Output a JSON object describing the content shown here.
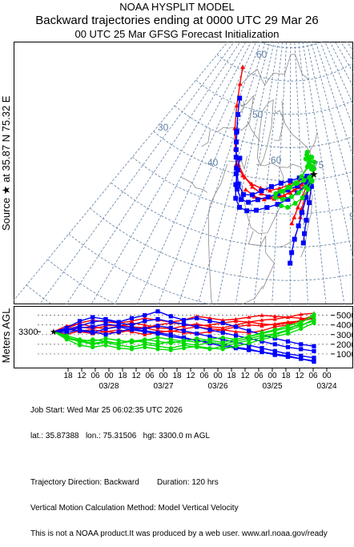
{
  "header": {
    "model": "NOAA HYSPLIT MODEL",
    "title": "Backward trajectories ending at 0000 UTC 29 Mar 26",
    "subtitle": "00 UTC 25 Mar    GFSG  Forecast Initialization"
  },
  "source_label": "Source ★ at   35.87 N   75.32 E",
  "profile_label": "Meters AGL",
  "map": {
    "lat_labels": [
      "60",
      "50",
      "40",
      "30"
    ],
    "lon_labels": [
      "60",
      "75",
      "90"
    ]
  },
  "chart_data": {
    "type": "line",
    "title": "Backward trajectories ending at 0000 UTC 29 Mar 26",
    "source_height_label": "3300",
    "y_axis": {
      "label": "Meters AGL",
      "ticks": [
        1000,
        2000,
        3000,
        4000,
        5000
      ],
      "ylim": [
        0,
        5800
      ]
    },
    "x_axis": {
      "hour_ticks": [
        "18",
        "12",
        "06",
        "00",
        "18",
        "12",
        "06",
        "00",
        "18",
        "12",
        "06",
        "00",
        "18",
        "12",
        "06",
        "00",
        "18",
        "12",
        "06",
        "00"
      ],
      "date_ticks": [
        "03/28",
        "03/27",
        "03/26",
        "03/25",
        "03/24"
      ]
    },
    "series": [
      {
        "color": "#ff0000",
        "marker": "triangle",
        "heights": [
          3300,
          3600,
          4200,
          4500,
          4300,
          4200,
          4400,
          4700,
          4500,
          4300,
          4500,
          4900,
          4700,
          4500,
          4600,
          4800,
          5000,
          4900,
          4800,
          5100,
          5200
        ]
      },
      {
        "color": "#ff0000",
        "marker": "triangle",
        "heights": [
          3300,
          3400,
          3800,
          3600,
          3900,
          4000,
          3800,
          3700,
          4000,
          4200,
          4100,
          3900,
          4000,
          4200,
          4400,
          4300,
          4500,
          4600,
          4800,
          4700,
          4600
        ]
      },
      {
        "color": "#ff0000",
        "marker": "triangle",
        "heights": [
          3300,
          3000,
          3400,
          3500,
          3300,
          3200,
          3500,
          3700,
          3400,
          3300,
          3600,
          3800,
          3600,
          3500,
          3800,
          4000,
          3900,
          4100,
          4300,
          4400,
          4800
        ]
      },
      {
        "color": "#ff0000",
        "marker": "triangle",
        "heights": [
          3300,
          3600,
          3300,
          3100,
          3300,
          3500,
          3300,
          3000,
          3200,
          3400,
          3200,
          3100,
          3300,
          3500,
          3300,
          3200,
          3400,
          3800,
          4000,
          4500,
          5000
        ]
      },
      {
        "color": "#ff0000",
        "marker": "triangle",
        "heights": [
          3300,
          3900,
          4100,
          3800,
          3600,
          3900,
          4200,
          4000,
          3700,
          3600,
          3900,
          4100,
          3800,
          3700,
          4000,
          4300,
          4100,
          4000,
          4200,
          4400,
          4700
        ]
      },
      {
        "color": "#0000ff",
        "marker": "square",
        "heights": [
          3300,
          3700,
          4400,
          4800,
          4600,
          4300,
          4700,
          5000,
          5400,
          4900,
          4500,
          4700,
          4400,
          4200,
          3800,
          3400,
          3000,
          2600,
          2300,
          2000,
          1800
        ]
      },
      {
        "color": "#0000ff",
        "marker": "square",
        "heights": [
          3300,
          3500,
          3900,
          4300,
          4500,
          4200,
          4000,
          4400,
          4600,
          4300,
          4100,
          3800,
          3500,
          3200,
          2900,
          2600,
          2300,
          2000,
          1700,
          1500,
          1300
        ]
      },
      {
        "color": "#0000ff",
        "marker": "square",
        "heights": [
          3300,
          3400,
          3700,
          3800,
          4100,
          3900,
          3700,
          3600,
          3900,
          3700,
          3400,
          3100,
          2800,
          2500,
          2200,
          1900,
          1600,
          1300,
          1000,
          800,
          600
        ]
      },
      {
        "color": "#0000ff",
        "marker": "square",
        "heights": [
          3300,
          3600,
          3400,
          3200,
          3600,
          3800,
          3500,
          3300,
          3100,
          2800,
          2600,
          2400,
          2100,
          1800,
          1600,
          1400,
          1200,
          900,
          700,
          500,
          300
        ]
      },
      {
        "color": "#0000ff",
        "marker": "square",
        "heights": [
          3300,
          3200,
          3500,
          3300,
          3000,
          3300,
          3600,
          3400,
          3200,
          3000,
          2700,
          2400,
          2200,
          2000,
          1700,
          1500,
          1200,
          1000,
          800,
          500,
          200
        ]
      },
      {
        "color": "#00dd00",
        "marker": "circle",
        "heights": [
          3300,
          2800,
          2200,
          2500,
          2300,
          2100,
          2400,
          2200,
          2000,
          2300,
          2100,
          1900,
          2200,
          2000,
          2300,
          2600,
          2900,
          3100,
          3500,
          4200,
          5100
        ]
      },
      {
        "color": "#00dd00",
        "marker": "circle",
        "heights": [
          3300,
          2600,
          2300,
          2000,
          2200,
          1900,
          1700,
          2000,
          1800,
          1600,
          1900,
          1700,
          1500,
          1800,
          2100,
          2400,
          2700,
          3000,
          3400,
          3900,
          4600
        ]
      },
      {
        "color": "#00dd00",
        "marker": "circle",
        "heights": [
          3300,
          2500,
          1900,
          1700,
          1900,
          1600,
          1500,
          1700,
          1500,
          1400,
          1600,
          1800,
          1600,
          1500,
          1800,
          2100,
          2500,
          2800,
          3100,
          3600,
          4200
        ]
      },
      {
        "color": "#00dd00",
        "marker": "circle",
        "heights": [
          3300,
          2700,
          2400,
          2100,
          2300,
          2100,
          2300,
          2500,
          2300,
          2100,
          2400,
          2200,
          2500,
          2700,
          2500,
          2800,
          3100,
          3400,
          3700,
          4000,
          4400
        ]
      },
      {
        "color": "#00dd00",
        "marker": "circle",
        "heights": [
          3300,
          2900,
          2500,
          2300,
          2600,
          2400,
          2200,
          2400,
          2700,
          2500,
          2300,
          2600,
          2400,
          2200,
          2500,
          2800,
          3200,
          3500,
          3900,
          4300,
          4900
        ]
      }
    ]
  },
  "trajectories": [
    {
      "color": "#ff0000",
      "marker": "triangle",
      "points": [
        [
          75.32,
          35.87
        ],
        [
          72.5,
          35.0
        ],
        [
          69,
          34.0
        ],
        [
          65,
          33.2
        ],
        [
          61,
          32.6
        ],
        [
          57,
          32.4
        ],
        [
          53,
          32.8
        ],
        [
          49,
          33.6
        ],
        [
          45,
          34.8
        ],
        [
          41,
          36.4
        ],
        [
          37.5,
          38.6
        ],
        [
          34,
          41.5
        ],
        [
          30.5,
          44.8
        ],
        [
          27,
          48.0
        ],
        [
          23.5,
          50.5
        ]
      ]
    },
    {
      "color": "#ff0000",
      "marker": "triangle",
      "points": [
        [
          75.32,
          35.87
        ],
        [
          72,
          35.5
        ],
        [
          68.5,
          35.0
        ],
        [
          64.5,
          34.4
        ],
        [
          60.5,
          33.8
        ],
        [
          56.5,
          33.4
        ],
        [
          52.5,
          33.6
        ],
        [
          48.5,
          34.0
        ],
        [
          44,
          35.0
        ],
        [
          40,
          36.4
        ]
      ]
    },
    {
      "color": "#ff0000",
      "marker": "triangle",
      "points": [
        [
          75.32,
          35.87
        ],
        [
          73,
          35.2
        ],
        [
          70,
          34.4
        ],
        [
          66.5,
          33.6
        ],
        [
          62.5,
          32.8
        ],
        [
          58.5,
          32.2
        ],
        [
          54.5,
          32.0
        ],
        [
          50.5,
          32.2
        ],
        [
          46.5,
          33.0
        ]
      ]
    },
    {
      "color": "#ff0000",
      "marker": "triangle",
      "points": [
        [
          75.32,
          35.87
        ],
        [
          74,
          35.4
        ],
        [
          72,
          34.2
        ],
        [
          70,
          32.6
        ],
        [
          68,
          31.0
        ],
        [
          66.5,
          29.5
        ],
        [
          65.6,
          28.6
        ]
      ]
    },
    {
      "color": "#ff0000",
      "marker": "triangle",
      "points": [
        [
          75.32,
          35.87
        ],
        [
          74.5,
          35.2
        ],
        [
          73,
          34.0
        ],
        [
          71,
          32.4
        ],
        [
          69.5,
          30.8
        ],
        [
          68.8,
          29.5
        ]
      ]
    },
    {
      "color": "#0000ff",
      "marker": "square",
      "points": [
        [
          75.32,
          35.87
        ],
        [
          72.5,
          35.6
        ],
        [
          69,
          35.4
        ],
        [
          65,
          35.0
        ],
        [
          61,
          34.6
        ],
        [
          57,
          34.0
        ],
        [
          53,
          33.2
        ],
        [
          49.5,
          32.4
        ],
        [
          46,
          32.2
        ],
        [
          43,
          33.6
        ],
        [
          40.5,
          35.8
        ],
        [
          38,
          38.5
        ],
        [
          35.5,
          41.2
        ],
        [
          33,
          43.6
        ],
        [
          30.5,
          46.0
        ]
      ]
    },
    {
      "color": "#0000ff",
      "marker": "square",
      "points": [
        [
          75.32,
          35.87
        ],
        [
          72,
          35.0
        ],
        [
          68,
          34.2
        ],
        [
          64,
          33.6
        ],
        [
          60,
          33.0
        ],
        [
          56,
          32.4
        ],
        [
          52,
          31.8
        ],
        [
          48.5,
          31.2
        ],
        [
          45.5,
          31.4
        ],
        [
          43,
          32.8
        ],
        [
          41,
          35.0
        ],
        [
          39,
          37.4
        ],
        [
          37,
          39.6
        ],
        [
          35.5,
          41.0
        ]
      ]
    },
    {
      "color": "#0000ff",
      "marker": "square",
      "points": [
        [
          75.32,
          35.87
        ],
        [
          72,
          34.4
        ],
        [
          68,
          33.2
        ],
        [
          64,
          32.2
        ],
        [
          60,
          31.4
        ],
        [
          56,
          30.8
        ],
        [
          52,
          30.2
        ],
        [
          48.5,
          29.9
        ],
        [
          45.5,
          30.2
        ],
        [
          43.3,
          31.4
        ],
        [
          42,
          33.4
        ],
        [
          41.3,
          35.6
        ],
        [
          40.8,
          37.4
        ]
      ]
    },
    {
      "color": "#0000ff",
      "marker": "square",
      "points": [
        [
          75.32,
          35.87
        ],
        [
          73.5,
          34.4
        ],
        [
          71.5,
          32.4
        ],
        [
          69.5,
          30.2
        ],
        [
          68,
          28.2
        ],
        [
          66.5,
          26.2
        ],
        [
          65.5,
          24.2
        ],
        [
          65,
          22.6
        ]
      ]
    },
    {
      "color": "#0000ff",
      "marker": "square",
      "points": [
        [
          75.32,
          35.87
        ],
        [
          74,
          34.0
        ],
        [
          72.5,
          31.6
        ],
        [
          71,
          29.0
        ],
        [
          70,
          27.0
        ],
        [
          69.5,
          25.6
        ]
      ]
    },
    {
      "color": "#00dd00",
      "marker": "circle",
      "points": [
        [
          75.32,
          35.87
        ],
        [
          73.5,
          35.4
        ],
        [
          71,
          35.0
        ],
        [
          68,
          34.6
        ],
        [
          65,
          34.0
        ],
        [
          62,
          33.4
        ],
        [
          59,
          33.0
        ],
        [
          61,
          33.4
        ],
        [
          64,
          34.0
        ],
        [
          67,
          34.6
        ],
        [
          70,
          35.6
        ],
        [
          73,
          37.0
        ],
        [
          74,
          38.2
        ],
        [
          73.5,
          39.2
        ]
      ]
    },
    {
      "color": "#00dd00",
      "marker": "circle",
      "points": [
        [
          75.32,
          35.87
        ],
        [
          74,
          35.0
        ],
        [
          71.5,
          34.0
        ],
        [
          68.5,
          33.2
        ],
        [
          65.5,
          32.6
        ],
        [
          62,
          32.2
        ],
        [
          59,
          32.4
        ]
      ]
    },
    {
      "color": "#00dd00",
      "marker": "circle",
      "points": [
        [
          75.32,
          35.87
        ],
        [
          74.5,
          34.8
        ],
        [
          72.5,
          33.6
        ],
        [
          70,
          32.4
        ],
        [
          67,
          31.6
        ],
        [
          64,
          31.0
        ],
        [
          61.5,
          31.2
        ]
      ]
    },
    {
      "color": "#00dd00",
      "marker": "circle",
      "points": [
        [
          75.32,
          35.87
        ],
        [
          75,
          37.0
        ],
        [
          74.5,
          37.8
        ],
        [
          75.5,
          38.4
        ],
        [
          76.5,
          37.6
        ],
        [
          76,
          36.6
        ]
      ]
    },
    {
      "color": "#00dd00",
      "marker": "circle",
      "points": [
        [
          75.32,
          35.87
        ],
        [
          74.8,
          36.6
        ],
        [
          73.5,
          37.2
        ],
        [
          72.5,
          38.2
        ],
        [
          73.2,
          38.8
        ],
        [
          74.2,
          38.4
        ]
      ]
    }
  ],
  "footer": {
    "job_start": "Job Start: Wed Mar 25 06:02:35 UTC 2026",
    "location": "lat.: 35.87388   lon.: 75.31506   hgt: 3300.0 m AGL",
    "direction": "Trajectory Direction: Backward        Duration: 120 hrs",
    "vertical": "Vertical Motion Calculation Method: Model Vertical Velocity",
    "disclaimer": "This is not a NOAA product.It was produced by a web user. www.arl.noaa.gov/ready"
  }
}
